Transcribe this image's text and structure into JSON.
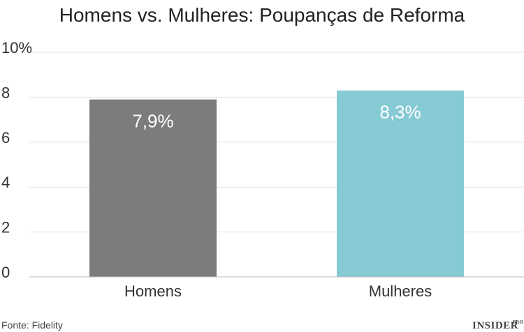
{
  "chart_data": {
    "type": "bar",
    "title": "Homens vs. Mulheres: Poupanças de Reforma",
    "categories": [
      "Homens",
      "Mulheres"
    ],
    "values": [
      7.9,
      8.3
    ],
    "data_labels": [
      "7,9%",
      "8,3%"
    ],
    "colors": [
      "#7b7d7d",
      "#86cad4"
    ],
    "ylim": [
      0,
      10
    ],
    "yticks": [
      0,
      2,
      4,
      6,
      8,
      10
    ],
    "ytick_labels": [
      "0",
      "2",
      "4",
      "6",
      "8",
      "10%"
    ],
    "grid": true,
    "xlabel": "",
    "ylabel": ""
  },
  "footer": {
    "source": "Fonte: Fidelity",
    "brand": "INSIDER",
    "brand_sup": "PRO"
  }
}
